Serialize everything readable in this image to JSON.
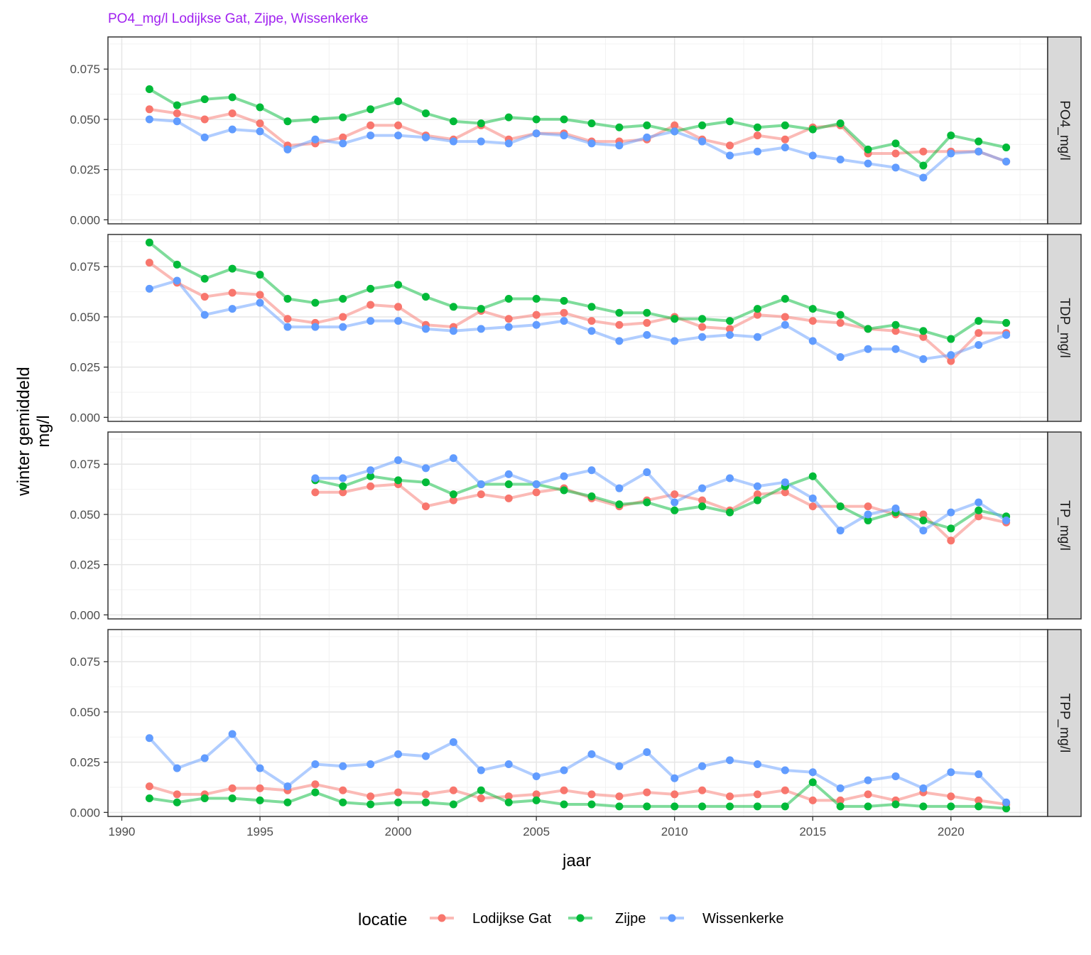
{
  "chart_data": {
    "type": "line",
    "title": "PO4_mg/l Lodijkse Gat, Zijpe, Wissenkerke",
    "title_color": "#A020F0",
    "xlabel": "jaar",
    "ylabel_line1": "winter gemiddeld",
    "ylabel_line2": "mg/l",
    "xlim": [
      1989.5,
      2023.5
    ],
    "ylim": [
      -0.002,
      0.091
    ],
    "x_ticks": [
      1990,
      1995,
      2000,
      2005,
      2010,
      2015,
      2020
    ],
    "y_ticks": [
      0.0,
      0.025,
      0.05,
      0.075
    ],
    "y_tick_labels": [
      "0.000",
      "0.025",
      "0.050",
      "0.075"
    ],
    "grid": true,
    "legend_position": "bottom",
    "legend_title": "locatie",
    "series_meta": [
      {
        "name": "Lodijkse Gat",
        "color": "#F8766D"
      },
      {
        "name": "Zijpe",
        "color": "#00BA38"
      },
      {
        "name": "Wissenkerke",
        "color": "#619CFF"
      }
    ],
    "panels": [
      {
        "strip": "PO4_mg/l",
        "series": [
          {
            "name": "Lodijkse Gat",
            "x": [
              1991,
              1992,
              1993,
              1994,
              1995,
              1996,
              1997,
              1998,
              1999,
              2000,
              2001,
              2002,
              2003,
              2004,
              2005,
              2006,
              2007,
              2008,
              2009,
              2010,
              2011,
              2012,
              2013,
              2014,
              2015,
              2016,
              2017,
              2018,
              2019,
              2020,
              2021,
              2022
            ],
            "values": [
              0.055,
              0.053,
              0.05,
              0.053,
              0.048,
              0.037,
              0.038,
              0.041,
              0.047,
              0.047,
              0.042,
              0.04,
              0.047,
              0.04,
              0.043,
              0.043,
              0.039,
              0.039,
              0.04,
              0.047,
              0.04,
              0.037,
              0.042,
              0.04,
              0.046,
              0.047,
              0.033,
              0.033,
              0.034,
              0.034,
              0.034,
              0.029
            ]
          },
          {
            "name": "Zijpe",
            "x": [
              1991,
              1992,
              1993,
              1994,
              1995,
              1996,
              1997,
              1998,
              1999,
              2000,
              2001,
              2002,
              2003,
              2004,
              2005,
              2006,
              2007,
              2008,
              2009,
              2010,
              2011,
              2012,
              2013,
              2014,
              2015,
              2016,
              2017,
              2018,
              2019,
              2020,
              2021,
              2022
            ],
            "values": [
              0.065,
              0.057,
              0.06,
              0.061,
              0.056,
              0.049,
              0.05,
              0.051,
              0.055,
              0.059,
              0.053,
              0.049,
              0.048,
              0.051,
              0.05,
              0.05,
              0.048,
              0.046,
              0.047,
              0.044,
              0.047,
              0.049,
              0.046,
              0.047,
              0.045,
              0.048,
              0.035,
              0.038,
              0.027,
              0.042,
              0.039,
              0.036
            ]
          },
          {
            "name": "Wissenkerke",
            "x": [
              1991,
              1992,
              1993,
              1994,
              1995,
              1996,
              1997,
              1998,
              1999,
              2000,
              2001,
              2002,
              2003,
              2004,
              2005,
              2006,
              2007,
              2008,
              2009,
              2010,
              2011,
              2012,
              2013,
              2014,
              2015,
              2016,
              2017,
              2018,
              2019,
              2020,
              2021,
              2022
            ],
            "values": [
              0.05,
              0.049,
              0.041,
              0.045,
              0.044,
              0.035,
              0.04,
              0.038,
              0.042,
              0.042,
              0.041,
              0.039,
              0.039,
              0.038,
              0.043,
              0.042,
              0.038,
              0.037,
              0.041,
              0.044,
              0.039,
              0.032,
              0.034,
              0.036,
              0.032,
              0.03,
              0.028,
              0.026,
              0.021,
              0.033,
              0.034,
              0.029
            ]
          }
        ]
      },
      {
        "strip": "TDP_mg/l",
        "series": [
          {
            "name": "Lodijkse Gat",
            "x": [
              1991,
              1992,
              1993,
              1994,
              1995,
              1996,
              1997,
              1998,
              1999,
              2000,
              2001,
              2002,
              2003,
              2004,
              2005,
              2006,
              2007,
              2008,
              2009,
              2010,
              2011,
              2012,
              2013,
              2014,
              2015,
              2016,
              2017,
              2018,
              2019,
              2020,
              2021,
              2022
            ],
            "values": [
              0.077,
              0.067,
              0.06,
              0.062,
              0.061,
              0.049,
              0.047,
              0.05,
              0.056,
              0.055,
              0.046,
              0.045,
              0.053,
              0.049,
              0.051,
              0.052,
              0.048,
              0.046,
              0.047,
              0.05,
              0.045,
              0.044,
              0.051,
              0.05,
              0.048,
              0.047,
              0.044,
              0.043,
              0.04,
              0.028,
              0.042,
              0.042
            ]
          },
          {
            "name": "Zijpe",
            "x": [
              1991,
              1992,
              1993,
              1994,
              1995,
              1996,
              1997,
              1998,
              1999,
              2000,
              2001,
              2002,
              2003,
              2004,
              2005,
              2006,
              2007,
              2008,
              2009,
              2010,
              2011,
              2012,
              2013,
              2014,
              2015,
              2016,
              2017,
              2018,
              2019,
              2020,
              2021,
              2022
            ],
            "values": [
              0.087,
              0.076,
              0.069,
              0.074,
              0.071,
              0.059,
              0.057,
              0.059,
              0.064,
              0.066,
              0.06,
              0.055,
              0.054,
              0.059,
              0.059,
              0.058,
              0.055,
              0.052,
              0.052,
              0.049,
              0.049,
              0.048,
              0.054,
              0.059,
              0.054,
              0.051,
              0.044,
              0.046,
              0.043,
              0.039,
              0.048,
              0.047
            ]
          },
          {
            "name": "Wissenkerke",
            "x": [
              1991,
              1992,
              1993,
              1994,
              1995,
              1996,
              1997,
              1998,
              1999,
              2000,
              2001,
              2002,
              2003,
              2004,
              2005,
              2006,
              2007,
              2008,
              2009,
              2010,
              2011,
              2012,
              2013,
              2014,
              2015,
              2016,
              2017,
              2018,
              2019,
              2020,
              2021,
              2022
            ],
            "values": [
              0.064,
              0.068,
              0.051,
              0.054,
              0.057,
              0.045,
              0.045,
              0.045,
              0.048,
              0.048,
              0.044,
              0.043,
              0.044,
              0.045,
              0.046,
              0.048,
              0.043,
              0.038,
              0.041,
              0.038,
              0.04,
              0.041,
              0.04,
              0.046,
              0.038,
              0.03,
              0.034,
              0.034,
              0.029,
              0.031,
              0.036,
              0.041
            ]
          }
        ]
      },
      {
        "strip": "TP_mg/l",
        "series": [
          {
            "name": "Lodijkse Gat",
            "x": [
              1997,
              1998,
              1999,
              2000,
              2001,
              2002,
              2003,
              2004,
              2005,
              2006,
              2007,
              2008,
              2009,
              2010,
              2011,
              2012,
              2013,
              2014,
              2015,
              2016,
              2017,
              2018,
              2019,
              2020,
              2021,
              2022
            ],
            "values": [
              0.061,
              0.061,
              0.064,
              0.065,
              0.054,
              0.057,
              0.06,
              0.058,
              0.061,
              0.063,
              0.058,
              0.054,
              0.057,
              0.06,
              0.057,
              0.052,
              0.06,
              0.061,
              0.054,
              0.054,
              0.054,
              0.05,
              0.05,
              0.037,
              0.049,
              0.046
            ]
          },
          {
            "name": "Zijpe",
            "x": [
              1997,
              1998,
              1999,
              2000,
              2001,
              2002,
              2003,
              2004,
              2005,
              2006,
              2007,
              2008,
              2009,
              2010,
              2011,
              2012,
              2013,
              2014,
              2015,
              2016,
              2017,
              2018,
              2019,
              2020,
              2021,
              2022
            ],
            "values": [
              0.067,
              0.064,
              0.069,
              0.067,
              0.066,
              0.06,
              0.065,
              0.065,
              0.065,
              0.062,
              0.059,
              0.055,
              0.056,
              0.052,
              0.054,
              0.051,
              0.057,
              0.064,
              0.069,
              0.054,
              0.047,
              0.051,
              0.047,
              0.043,
              0.052,
              0.049
            ]
          },
          {
            "name": "Wissenkerke",
            "x": [
              1997,
              1998,
              1999,
              2000,
              2001,
              2002,
              2003,
              2004,
              2005,
              2006,
              2007,
              2008,
              2009,
              2010,
              2011,
              2012,
              2013,
              2014,
              2015,
              2016,
              2017,
              2018,
              2019,
              2020,
              2021,
              2022
            ],
            "values": [
              0.068,
              0.068,
              0.072,
              0.077,
              0.073,
              0.078,
              0.065,
              0.07,
              0.065,
              0.069,
              0.072,
              0.063,
              0.071,
              0.056,
              0.063,
              0.068,
              0.064,
              0.066,
              0.058,
              0.042,
              0.05,
              0.053,
              0.042,
              0.051,
              0.056,
              0.047
            ]
          }
        ]
      },
      {
        "strip": "TPP_mg/l",
        "series": [
          {
            "name": "Lodijkse Gat",
            "x": [
              1991,
              1992,
              1993,
              1994,
              1995,
              1996,
              1997,
              1998,
              1999,
              2000,
              2001,
              2002,
              2003,
              2004,
              2005,
              2006,
              2007,
              2008,
              2009,
              2010,
              2011,
              2012,
              2013,
              2014,
              2015,
              2016,
              2017,
              2018,
              2019,
              2020,
              2021,
              2022
            ],
            "values": [
              0.013,
              0.009,
              0.009,
              0.012,
              0.012,
              0.011,
              0.014,
              0.011,
              0.008,
              0.01,
              0.009,
              0.011,
              0.007,
              0.008,
              0.009,
              0.011,
              0.009,
              0.008,
              0.01,
              0.009,
              0.011,
              0.008,
              0.009,
              0.011,
              0.006,
              0.006,
              0.009,
              0.006,
              0.01,
              0.008,
              0.006,
              0.004
            ]
          },
          {
            "name": "Zijpe",
            "x": [
              1991,
              1992,
              1993,
              1994,
              1995,
              1996,
              1997,
              1998,
              1999,
              2000,
              2001,
              2002,
              2003,
              2004,
              2005,
              2006,
              2007,
              2008,
              2009,
              2010,
              2011,
              2012,
              2013,
              2014,
              2015,
              2016,
              2017,
              2018,
              2019,
              2020,
              2021,
              2022
            ],
            "values": [
              0.007,
              0.005,
              0.007,
              0.007,
              0.006,
              0.005,
              0.01,
              0.005,
              0.004,
              0.005,
              0.005,
              0.004,
              0.011,
              0.005,
              0.006,
              0.004,
              0.004,
              0.003,
              0.003,
              0.003,
              0.003,
              0.003,
              0.003,
              0.003,
              0.015,
              0.003,
              0.003,
              0.004,
              0.003,
              0.003,
              0.003,
              0.002
            ]
          },
          {
            "name": "Wissenkerke",
            "x": [
              1991,
              1992,
              1993,
              1994,
              1995,
              1996,
              1997,
              1998,
              1999,
              2000,
              2001,
              2002,
              2003,
              2004,
              2005,
              2006,
              2007,
              2008,
              2009,
              2010,
              2011,
              2012,
              2013,
              2014,
              2015,
              2016,
              2017,
              2018,
              2019,
              2020,
              2021,
              2022
            ],
            "values": [
              0.037,
              0.022,
              0.027,
              0.039,
              0.022,
              0.013,
              0.024,
              0.023,
              0.024,
              0.029,
              0.028,
              0.035,
              0.021,
              0.024,
              0.018,
              0.021,
              0.029,
              0.023,
              0.03,
              0.017,
              0.023,
              0.026,
              0.024,
              0.021,
              0.02,
              0.012,
              0.016,
              0.018,
              0.012,
              0.02,
              0.019,
              0.005
            ]
          }
        ]
      }
    ]
  }
}
